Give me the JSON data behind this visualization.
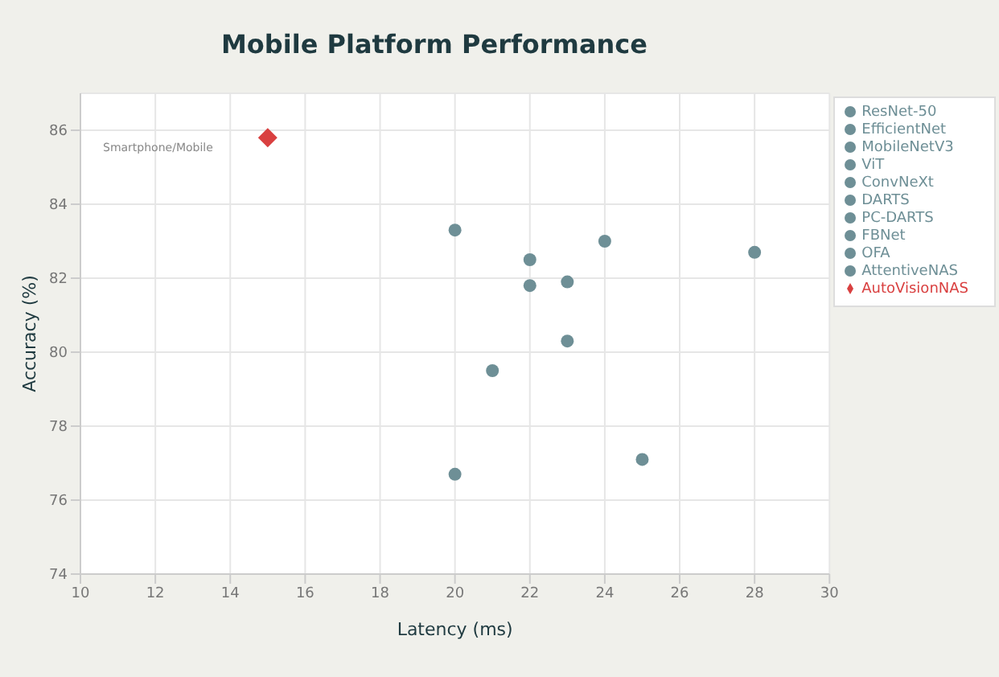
{
  "chart_data": {
    "type": "scatter",
    "title": "Mobile Platform Performance",
    "xlabel": "Latency (ms)",
    "ylabel": "Accuracy (%)",
    "xlim": [
      10,
      30
    ],
    "xticks": [
      10,
      12,
      14,
      16,
      18,
      20,
      22,
      24,
      26,
      28,
      30
    ],
    "ylim": [
      74,
      87
    ],
    "yticks": [
      74,
      76,
      78,
      80,
      82,
      84,
      86
    ],
    "grid": true,
    "legend": "right",
    "marker": "circle",
    "annotations": [
      "Smartphone/Mobile"
    ],
    "series": [
      {
        "name": "ResNet-50",
        "color": "#6e8f96",
        "x": [
          20
        ],
        "values": [
          83.3
        ]
      },
      {
        "name": "EfficientNet",
        "color": "#6e8f96",
        "x": [
          24
        ],
        "values": [
          83.0
        ]
      },
      {
        "name": "MobileNetV3",
        "color": "#6e8f96",
        "x": [
          22
        ],
        "values": [
          82.5
        ]
      },
      {
        "name": "ViT",
        "color": "#6e8f96",
        "x": [
          28
        ],
        "values": [
          82.7
        ]
      },
      {
        "name": "ConvNeXt",
        "color": "#6e8f96",
        "x": [
          22
        ],
        "values": [
          81.8
        ]
      },
      {
        "name": "DARTS",
        "color": "#6e8f96",
        "x": [
          23
        ],
        "values": [
          81.9
        ]
      },
      {
        "name": "PC-DARTS",
        "color": "#6e8f96",
        "x": [
          23
        ],
        "values": [
          80.3
        ]
      },
      {
        "name": "FBNet",
        "color": "#6e8f96",
        "x": [
          21
        ],
        "values": [
          79.5
        ]
      },
      {
        "name": "OFA",
        "color": "#6e8f96",
        "x": [
          25
        ],
        "values": [
          77.1
        ]
      },
      {
        "name": "AttentiveNAS",
        "color": "#6e8f96",
        "x": [
          20
        ],
        "values": [
          76.7
        ]
      },
      {
        "name": "AutoVisionNAS",
        "color": "#d94040",
        "marker": "diamond",
        "x": [
          15
        ],
        "values": [
          85.8
        ]
      }
    ]
  }
}
